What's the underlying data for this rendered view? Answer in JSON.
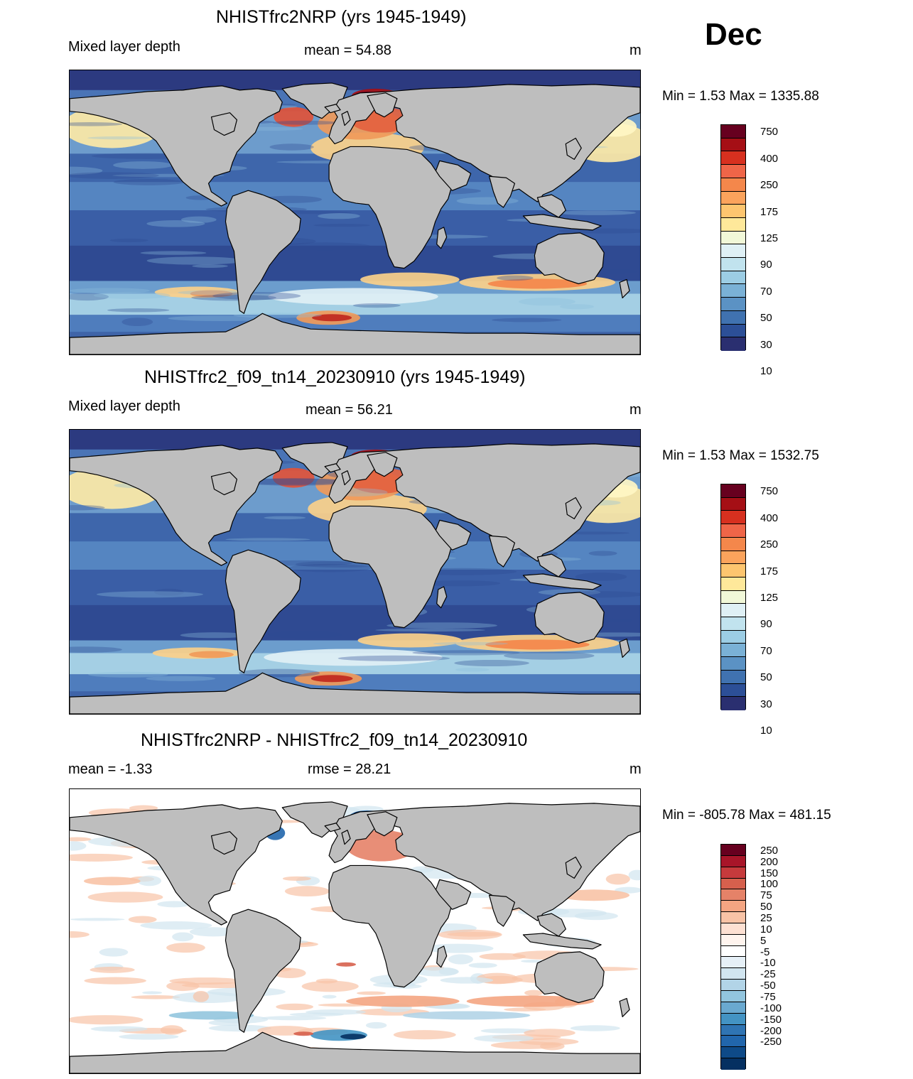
{
  "month": "Dec",
  "panels": [
    {
      "title": "NHISTfrc2NRP (yrs 1945-1949)",
      "left_label": "Mixed layer depth",
      "center_label": "mean =  54.88",
      "units": "m",
      "minmax": "Min =    1.53 Max = 1335.88",
      "kind": "abs"
    },
    {
      "title": "NHISTfrc2_f09_tn14_20230910 (yrs 1945-1949)",
      "left_label": "Mixed layer depth",
      "center_label": "mean =  56.21",
      "units": "m",
      "minmax": "Min =    1.53 Max = 1532.75",
      "kind": "abs"
    },
    {
      "title": "NHISTfrc2NRP - NHISTfrc2_f09_tn14_20230910",
      "left_label": "mean =  -1.33",
      "center_label": "rmse =  28.21",
      "units": "m",
      "minmax": "Min = -805.78 Max = 481.15",
      "kind": "diff"
    }
  ],
  "colorbars": {
    "abs": {
      "colors": [
        "#67001f",
        "#a50f15",
        "#d7301f",
        "#ef6548",
        "#f4874b",
        "#fba35c",
        "#fdc56f",
        "#fee89a",
        "#f1f8d8",
        "#dff0f5",
        "#c1e3ee",
        "#9ccde4",
        "#7ab1d6",
        "#5b92c4",
        "#4072b0",
        "#2c4f97",
        "#2a2f70"
      ],
      "labels": [
        "750",
        "400",
        "250",
        "175",
        "125",
        "90",
        "70",
        "50",
        "30",
        "10"
      ]
    },
    "diff": {
      "colors": [
        "#67001f",
        "#a81529",
        "#c63a3c",
        "#d6604d",
        "#e58268",
        "#f4a582",
        "#f8c3a6",
        "#fde0d2",
        "#fff4ee",
        "#ffffff",
        "#e6f0f7",
        "#d1e5f0",
        "#b2d4e7",
        "#92c5de",
        "#6aa9d0",
        "#4393c3",
        "#2f74b3",
        "#2166ac",
        "#0e4a88",
        "#053061"
      ],
      "labels": [
        "250",
        "200",
        "150",
        "100",
        "75",
        "50",
        "25",
        "10",
        "5",
        "-5",
        "-10",
        "-25",
        "-50",
        "-75",
        "-100",
        "-150",
        "-200",
        "-250"
      ]
    }
  }
}
